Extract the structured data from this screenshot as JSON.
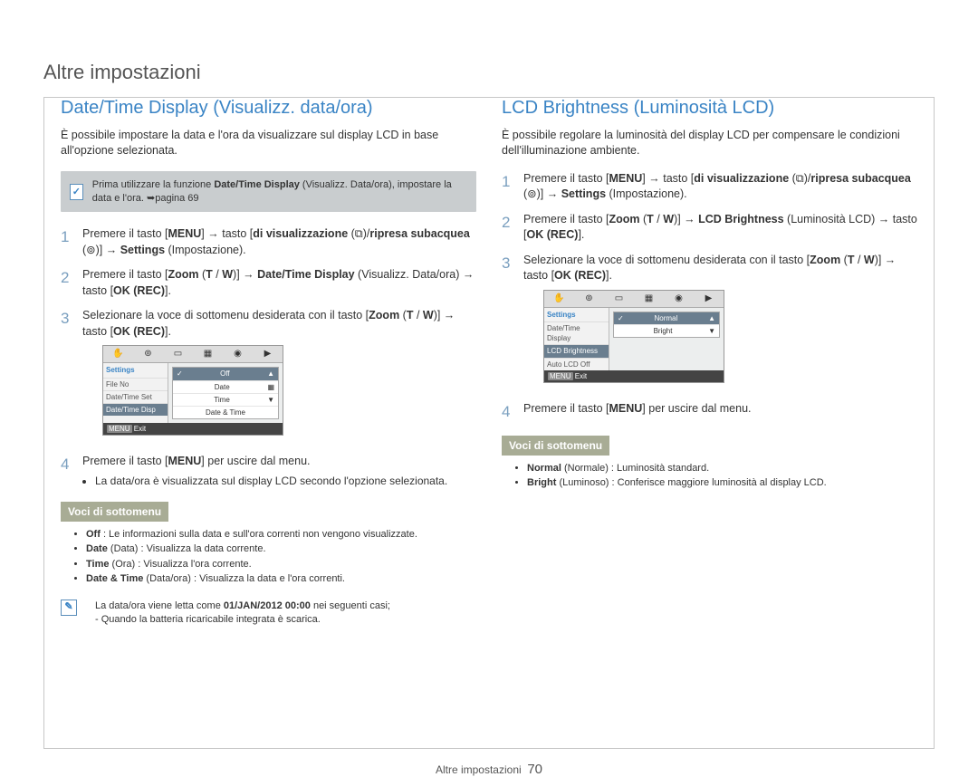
{
  "page": {
    "topTitle": "Altre impostazioni",
    "footer_label": "Altre impostazioni",
    "page_number": "70"
  },
  "left": {
    "heading": "Date/Time Display (Visualizz. data/ora)",
    "intro": "È possibile impostare la data e l'ora da visualizzare sul display LCD in base all'opzione selezionata.",
    "infobox_prefix": "Prima utilizzare la funzione ",
    "infobox_bold": "Date/Time Display",
    "infobox_mid": " (Visualizz. Data/ora), impostare la data e l'ora. ",
    "infobox_page": "➥pagina 69",
    "step1": "Premere il tasto [MENU] → tasto [di visualizzazione (⧉)/ripresa subacquea (⊚)] → Settings (Impostazione).",
    "step2": "Premere il tasto [Zoom (T / W)] → Date/Time Display (Visualizz. Data/ora) → tasto [OK (REC)].",
    "step3": "Selezionare la voce di sottomenu desiderata con il tasto [Zoom (T / W)] → tasto [OK (REC)].",
    "step4": "Premere il tasto [MENU] per uscire dal menu.",
    "step4_bullet": "La data/ora è visualizzata sul display LCD secondo l'opzione selezionata.",
    "submenu_header": "Voci di sottomenu",
    "submenu_items": {
      "off_b": "Off",
      "off_t": " : Le informazioni sulla data e sull'ora correnti non vengono visualizzate.",
      "date_b": "Date",
      "date_p": " (Data)",
      "date_t": " : Visualizza la data corrente.",
      "time_b": "Time",
      "time_p": " (Ora)",
      "time_t": " : Visualizza l'ora corrente.",
      "dt_b": "Date & Time",
      "dt_p": " (Data/ora)",
      "dt_t": " : Visualizza la data e l'ora correnti."
    },
    "footnote_a": "La data/ora viene letta come ",
    "footnote_b": "01/JAN/2012 00:00",
    "footnote_c": " nei seguenti casi;",
    "footnote_d": "- Quando la batteria ricaricabile integrata è scarica.",
    "mock": {
      "settings": "Settings",
      "side": {
        "a": "File No",
        "b": "Date/Time Set",
        "c": "Date/Time Disp"
      },
      "opts": {
        "off": "Off",
        "date": "Date",
        "time": "Time",
        "dt": "Date & Time"
      },
      "exit": "Exit"
    }
  },
  "right": {
    "heading": "LCD Brightness (Luminosità LCD)",
    "intro": "È possibile regolare la luminosità del display LCD per compensare le condizioni dell'illuminazione ambiente.",
    "step1": "Premere il tasto [MENU] → tasto [di visualizzazione (⧉)/ripresa subacquea (⊚)] → Settings (Impostazione).",
    "step2": "Premere il tasto [Zoom (T / W)] → LCD Brightness (Luminosità LCD) → tasto [OK (REC)].",
    "step3": "Selezionare la voce di sottomenu desiderata con il tasto [Zoom (T / W)] → tasto [OK (REC)].",
    "step4": "Premere il tasto [MENU] per uscire dal menu.",
    "submenu_header": "Voci di sottomenu",
    "submenu_items": {
      "normal_b": "Normal",
      "normal_p": " (Normale)",
      "normal_t": " : Luminosità standard.",
      "bright_b": "Bright",
      "bright_p": " (Luminoso)",
      "bright_t": " : Conferisce maggiore luminosità al display LCD."
    },
    "mock": {
      "settings": "Settings",
      "side": {
        "a": "Date/Time Display",
        "b": "LCD Brightness",
        "c": "Auto LCD Off"
      },
      "opts": {
        "normal": "Normal",
        "bright": "Bright"
      },
      "exit": "Exit"
    }
  }
}
